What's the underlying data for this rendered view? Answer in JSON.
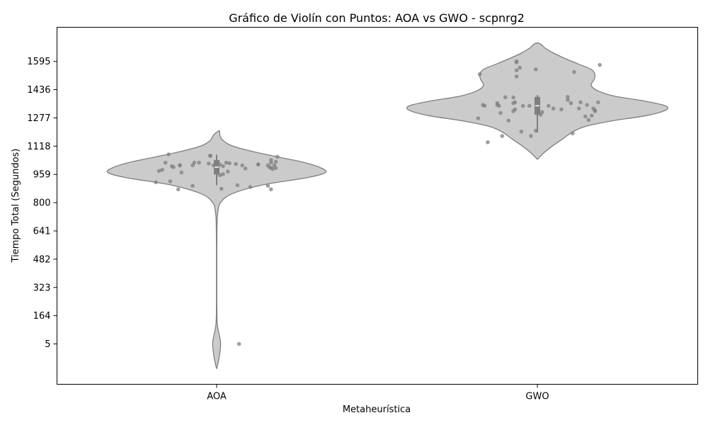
{
  "chart_data": {
    "type": "violin",
    "title": "Gráfico de Violín con Puntos: AOA vs GWO - scpnrg2",
    "xlabel": "Metaheurística",
    "ylabel": "Tiempo Total (Segundos)",
    "categories": [
      "AOA",
      "GWO"
    ],
    "y_ticks": [
      5,
      164,
      323,
      482,
      641,
      800,
      959,
      1118,
      1277,
      1436,
      1595
    ],
    "y_tick_labels": [
      "5",
      "164",
      "323",
      "482",
      "641",
      "800",
      "959",
      "1118",
      "1277",
      "1436",
      "1595"
    ],
    "ylim": [
      -222,
      1787
    ],
    "grid": false,
    "legend": "none",
    "colors": {
      "violin_fill": "#cbcbcb",
      "violin_edge": "#7f7f7f",
      "points": "#7f7f7f",
      "box": "#7f7f7f",
      "median": "#ffffff"
    },
    "series": [
      {
        "category": "AOA",
        "density": [
          [
            -135,
            0.0
          ],
          [
            -100,
            0.012
          ],
          [
            -60,
            0.022
          ],
          [
            -20,
            0.029
          ],
          [
            5,
            0.031
          ],
          [
            30,
            0.028
          ],
          [
            70,
            0.016
          ],
          [
            110,
            0.006
          ],
          [
            160,
            0.0025
          ],
          [
            250,
            0.0015
          ],
          [
            400,
            0.0015
          ],
          [
            550,
            0.0015
          ],
          [
            700,
            0.004
          ],
          [
            750,
            0.01
          ],
          [
            800,
            0.03
          ],
          [
            850,
            0.12
          ],
          [
            900,
            0.36
          ],
          [
            940,
            0.7
          ],
          [
            970,
            0.85
          ],
          [
            1000,
            0.8
          ],
          [
            1030,
            0.66
          ],
          [
            1060,
            0.46
          ],
          [
            1090,
            0.27
          ],
          [
            1120,
            0.12
          ],
          [
            1150,
            0.05
          ],
          [
            1180,
            0.025
          ],
          [
            1205,
            0.02
          ]
        ],
        "box": {
          "q1": 959,
          "median": 1000,
          "q3": 1040,
          "whisker_low": 898,
          "whisker_high": 1070
        },
        "points": [
          [
            -0.38,
            915
          ],
          [
            -0.36,
            978
          ],
          [
            -0.34,
            985
          ],
          [
            -0.32,
            1025
          ],
          [
            -0.3,
            1072
          ],
          [
            -0.29,
            920
          ],
          [
            -0.28,
            1005
          ],
          [
            -0.27,
            1000
          ],
          [
            -0.24,
            875
          ],
          [
            -0.23,
            1010
          ],
          [
            -0.23,
            1010
          ],
          [
            -0.22,
            970
          ],
          [
            -0.15,
            1010
          ],
          [
            -0.15,
            895
          ],
          [
            -0.14,
            1025
          ],
          [
            -0.11,
            1025
          ],
          [
            -0.05,
            1020
          ],
          [
            -0.04,
            1065
          ],
          [
            -0.04,
            1063
          ],
          [
            -0.02,
            1010
          ],
          [
            0.02,
            1015
          ],
          [
            0.02,
            955
          ],
          [
            0.03,
            878
          ],
          [
            0.04,
            960
          ],
          [
            0.04,
            1005
          ],
          [
            0.06,
            1025
          ],
          [
            0.07,
            975
          ],
          [
            0.08,
            1022
          ],
          [
            0.12,
            1018
          ],
          [
            0.13,
            898
          ],
          [
            0.16,
            1010
          ],
          [
            0.18,
            992
          ],
          [
            0.21,
            888
          ],
          [
            0.26,
            1015
          ],
          [
            0.26,
            1015
          ],
          [
            0.32,
            1010
          ],
          [
            0.32,
            895
          ],
          [
            0.33,
            1000
          ],
          [
            0.34,
            1040
          ],
          [
            0.34,
            1025
          ],
          [
            0.34,
            995
          ],
          [
            0.34,
            875
          ],
          [
            0.35,
            990
          ],
          [
            0.36,
            1010
          ],
          [
            0.37,
            1030
          ],
          [
            0.37,
            995
          ],
          [
            0.38,
            1058
          ],
          [
            0.14,
            5
          ]
        ]
      },
      {
        "category": "GWO",
        "density": [
          [
            1044,
            0.0
          ],
          [
            1080,
            0.05
          ],
          [
            1120,
            0.12
          ],
          [
            1160,
            0.2
          ],
          [
            1200,
            0.28
          ],
          [
            1230,
            0.38
          ],
          [
            1260,
            0.58
          ],
          [
            1290,
            0.85
          ],
          [
            1320,
            1.0
          ],
          [
            1345,
            1.0
          ],
          [
            1370,
            0.85
          ],
          [
            1400,
            0.6
          ],
          [
            1430,
            0.47
          ],
          [
            1460,
            0.42
          ],
          [
            1490,
            0.44
          ],
          [
            1520,
            0.45
          ],
          [
            1550,
            0.42
          ],
          [
            1580,
            0.32
          ],
          [
            1610,
            0.22
          ],
          [
            1640,
            0.13
          ],
          [
            1670,
            0.06
          ],
          [
            1690,
            0.03
          ],
          [
            1699,
            0.0
          ]
        ],
        "box": {
          "q1": 1295,
          "median": 1345,
          "q3": 1395,
          "whisker_low": 1195,
          "whisker_high": 1405
        },
        "points": [
          [
            -0.37,
            1275
          ],
          [
            -0.36,
            1523
          ],
          [
            -0.34,
            1350
          ],
          [
            -0.33,
            1345
          ],
          [
            -0.31,
            1140
          ],
          [
            -0.25,
            1360
          ],
          [
            -0.25,
            1350
          ],
          [
            -0.24,
            1345
          ],
          [
            -0.23,
            1305
          ],
          [
            -0.22,
            1175
          ],
          [
            -0.2,
            1393
          ],
          [
            -0.18,
            1262
          ],
          [
            -0.15,
            1392
          ],
          [
            -0.15,
            1315
          ],
          [
            -0.15,
            1360
          ],
          [
            -0.14,
            1365
          ],
          [
            -0.14,
            1325
          ],
          [
            -0.13,
            1510
          ],
          [
            -0.13,
            1545
          ],
          [
            -0.13,
            1590
          ],
          [
            -0.13,
            1595
          ],
          [
            -0.11,
            1560
          ],
          [
            -0.1,
            1200
          ],
          [
            -0.09,
            1345
          ],
          [
            -0.05,
            1345
          ],
          [
            -0.04,
            1175
          ],
          [
            -0.01,
            1550
          ],
          [
            -0.01,
            1205
          ],
          [
            0.02,
            1295
          ],
          [
            0.03,
            1310
          ],
          [
            0.07,
            1345
          ],
          [
            0.1,
            1330
          ],
          [
            0.15,
            1325
          ],
          [
            0.19,
            1378
          ],
          [
            0.19,
            1395
          ],
          [
            0.21,
            1360
          ],
          [
            0.22,
            1190
          ],
          [
            0.23,
            1535
          ],
          [
            0.26,
            1330
          ],
          [
            0.27,
            1365
          ],
          [
            0.3,
            1285
          ],
          [
            0.31,
            1350
          ],
          [
            0.32,
            1265
          ],
          [
            0.34,
            1290
          ],
          [
            0.35,
            1330
          ],
          [
            0.36,
            1315
          ],
          [
            0.38,
            1365
          ],
          [
            0.39,
            1575
          ],
          [
            0.36,
            1320
          ]
        ]
      }
    ]
  }
}
